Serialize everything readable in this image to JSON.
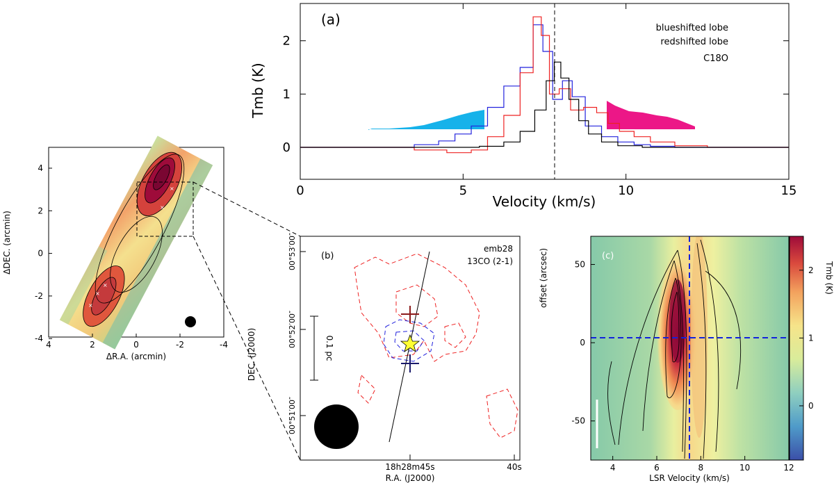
{
  "panel_map": {
    "xlabel": "ΔR.A. (arcmin)",
    "ylabel": "ΔDEC. (arcmin)",
    "x_ticks": [
      "4",
      "2",
      "0",
      "-2",
      "-4"
    ],
    "y_ticks": [
      "4",
      "2",
      "0",
      "-2",
      "-4"
    ]
  },
  "panel_a": {
    "label": "(a)",
    "legend": [
      {
        "text": "blueshifted lobe",
        "color": "#2222dd"
      },
      {
        "text": "redshifted lobe",
        "color": "#ee2222"
      },
      {
        "text": "C18O",
        "color": "#000000"
      }
    ],
    "xlabel": "Velocity (km/s)",
    "ylabel": "Tmb (K)",
    "x_ticks": [
      "0",
      "5",
      "10",
      "15"
    ],
    "y_ticks": [
      "0",
      "1",
      "2"
    ]
  },
  "panel_b": {
    "label": "(b)",
    "source": "emb28",
    "line": "13CO (2-1)",
    "scalebar": "0.1 pc",
    "dec_ticks": [
      "00°53′00″",
      "00°52′00″",
      "00°51′00″"
    ],
    "ra_ticks": [
      "18h28m45s",
      "40s"
    ],
    "xlabel": "R.A. (J2000)",
    "ylabel": "DEC. (J2000)"
  },
  "panel_c": {
    "label": "(c)",
    "xlabel": "LSR Velocity (km/s)",
    "ylabel": "offset (arcsec)",
    "x_ticks": [
      "4",
      "6",
      "8",
      "10",
      "12"
    ],
    "y_ticks": [
      "50",
      "0",
      "-50"
    ],
    "colorbar_label": "Tmb (K)",
    "colorbar_ticks": [
      "2",
      "1",
      "0"
    ]
  },
  "chart_data": [
    {
      "type": "line",
      "title": "(a)",
      "xlabel": "Velocity (km/s)",
      "ylabel": "Tmb (K)",
      "xlim": [
        0,
        15
      ],
      "ylim": [
        -0.6,
        2.7
      ],
      "vline": 7.85,
      "series": [
        {
          "name": "blueshifted lobe",
          "color": "#2222dd",
          "x": [
            0,
            2,
            3,
            4,
            4.5,
            5,
            5.5,
            6,
            6.5,
            7,
            7.3,
            7.6,
            7.9,
            8.2,
            8.5,
            9,
            9.5,
            10,
            10.5,
            11,
            12,
            13,
            14,
            15
          ],
          "y": [
            0,
            0,
            0,
            0.05,
            0.12,
            0.25,
            0.4,
            0.75,
            1.15,
            1.5,
            2.3,
            1.8,
            0.9,
            1.25,
            0.95,
            0.4,
            0.2,
            0.1,
            0.05,
            0.02,
            0,
            0,
            0,
            0
          ]
        },
        {
          "name": "redshifted lobe",
          "color": "#ee2222",
          "x": [
            0,
            2,
            3,
            4,
            5,
            5.5,
            6,
            6.5,
            7,
            7.3,
            7.5,
            7.8,
            8.1,
            8.5,
            8.9,
            9.3,
            9.6,
            10,
            10.5,
            11,
            12,
            13,
            14,
            15
          ],
          "y": [
            0,
            0,
            0,
            -0.05,
            -0.1,
            -0.05,
            0.2,
            0.6,
            1.4,
            2.45,
            2.1,
            1.0,
            1.1,
            0.7,
            0.75,
            0.65,
            0.45,
            0.3,
            0.2,
            0.1,
            0.03,
            0,
            0,
            0
          ]
        },
        {
          "name": "C18O",
          "color": "#000000",
          "x": [
            0,
            2,
            4,
            5,
            6,
            6.5,
            7,
            7.4,
            7.7,
            7.9,
            8.1,
            8.4,
            8.7,
            9,
            9.5,
            10,
            11,
            12,
            13,
            14,
            15
          ],
          "y": [
            0,
            0,
            0,
            0,
            0.02,
            0.1,
            0.3,
            0.7,
            1.25,
            1.6,
            1.3,
            0.9,
            0.5,
            0.25,
            0.1,
            0.03,
            0,
            0,
            0,
            0,
            0
          ]
        }
      ]
    },
    {
      "type": "heatmap",
      "title": "(c)",
      "xlabel": "LSR Velocity (km/s)",
      "ylabel": "offset (arcsec)",
      "xlim": [
        3,
        12
      ],
      "ylim": [
        -75,
        68
      ],
      "vline": 7.9,
      "hline": 0,
      "colorbar_range": [
        -0.8,
        2.5
      ]
    }
  ]
}
